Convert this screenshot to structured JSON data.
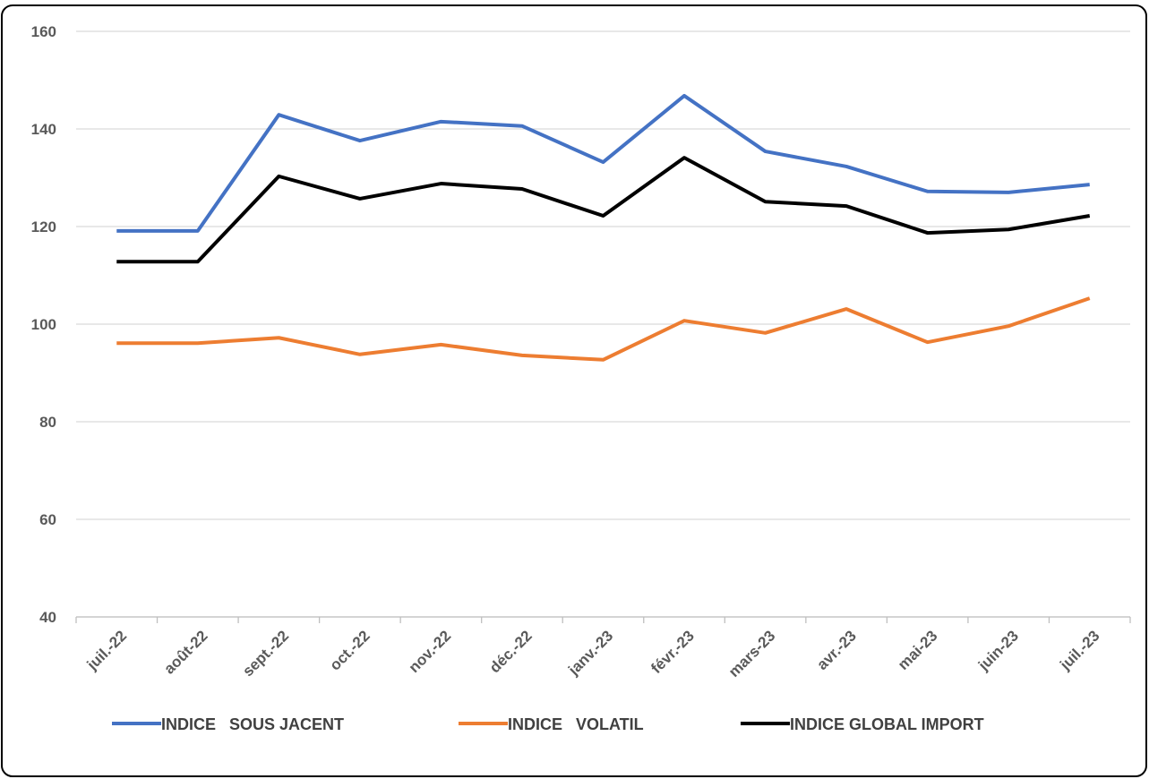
{
  "chart_data": {
    "type": "line",
    "categories": [
      "juil.-22",
      "août-22",
      "sept.-22",
      "oct.-22",
      "nov.-22",
      "déc.-22",
      "janv.-23",
      "févr.-23",
      "mars-23",
      "avr.-23",
      "mai-23",
      "juin-23",
      "juil.-23"
    ],
    "series": [
      {
        "name": "INDICE   SOUS JACENT",
        "color": "#4472c4",
        "values": [
          119.1,
          119.1,
          142.9,
          137.6,
          141.5,
          140.6,
          133.2,
          146.8,
          135.4,
          132.3,
          127.2,
          127.0,
          128.6
        ]
      },
      {
        "name": "INDICE   VOLATIL",
        "color": "#ed7d31",
        "values": [
          96.1,
          96.1,
          97.2,
          93.8,
          95.8,
          93.6,
          92.7,
          100.7,
          98.2,
          103.1,
          96.3,
          99.6,
          105.3
        ]
      },
      {
        "name": "INDICE GLOBAL IMPORT",
        "color": "#000000",
        "values": [
          112.8,
          112.8,
          130.3,
          125.7,
          128.8,
          127.7,
          122.2,
          134.1,
          125.1,
          124.2,
          118.7,
          119.4,
          122.2
        ]
      }
    ],
    "ylim": [
      40,
      160
    ],
    "yticks": [
      40,
      60,
      80,
      100,
      120,
      140,
      160
    ],
    "grid": true,
    "legend": "bottom"
  }
}
